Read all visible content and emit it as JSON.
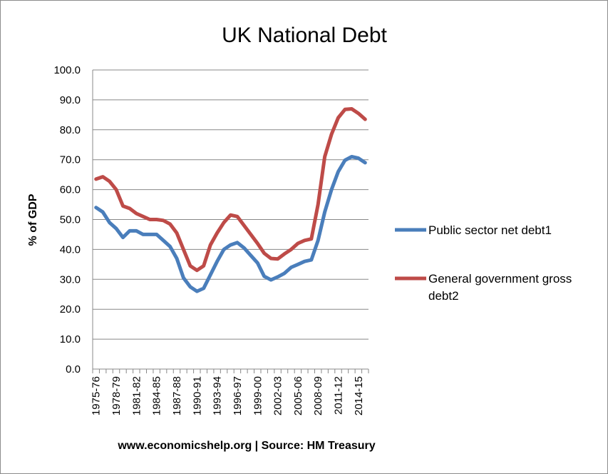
{
  "chart_data": {
    "type": "line",
    "title": "UK National Debt",
    "ylabel": "% of GDP",
    "xlabel": "",
    "ylim": [
      0,
      100
    ],
    "y_ticks": [
      "0.0",
      "10.0",
      "20.0",
      "30.0",
      "40.0",
      "50.0",
      "60.0",
      "70.0",
      "80.0",
      "90.0",
      "100.0"
    ],
    "grid": "horizontal",
    "legend_position": "right",
    "x": [
      "1975-76",
      "1976-77",
      "1977-78",
      "1978-79",
      "1979-80",
      "1980-81",
      "1981-82",
      "1982-83",
      "1983-84",
      "1984-85",
      "1985-86",
      "1986-87",
      "1987-88",
      "1988-89",
      "1989-90",
      "1990-91",
      "1991-92",
      "1992-93",
      "1993-94",
      "1994-95",
      "1995-96",
      "1996-97",
      "1997-98",
      "1998-99",
      "1999-00",
      "2000-01",
      "2001-02",
      "2002-03",
      "2003-04",
      "2004-05",
      "2005-06",
      "2006-07",
      "2007-08",
      "2008-09",
      "2009-10",
      "2010-11",
      "2011-12",
      "2012-13",
      "2013-14",
      "2014-15",
      "2015-16"
    ],
    "x_tick_labels": [
      "1975-76",
      "1978-79",
      "1981-82",
      "1984-85",
      "1987-88",
      "1990-91",
      "1993-94",
      "1996-97",
      "1999-00",
      "2002-03",
      "2005-06",
      "2008-09",
      "2011-12",
      "2014-15"
    ],
    "series": [
      {
        "name": "Public sector net debt1",
        "color": "#4a7ebb",
        "values": [
          54.0,
          52.5,
          49.0,
          47.0,
          44.0,
          46.2,
          46.2,
          45.0,
          45.0,
          45.0,
          43.0,
          41.0,
          37.0,
          30.5,
          27.5,
          26.0,
          27.0,
          31.5,
          36.0,
          40.0,
          41.5,
          42.3,
          40.5,
          38.0,
          35.5,
          31.0,
          29.8,
          30.8,
          32.0,
          34.0,
          35.0,
          36.0,
          36.5,
          43.0,
          52.5,
          60.0,
          66.0,
          69.8,
          71.0,
          70.5,
          69.0
        ]
      },
      {
        "name": "General government gross debt2",
        "color": "#be4b48",
        "values": [
          63.5,
          64.3,
          62.8,
          60.0,
          54.5,
          53.7,
          52.0,
          51.0,
          50.0,
          50.0,
          49.7,
          48.5,
          45.5,
          40.0,
          34.5,
          33.0,
          34.5,
          41.5,
          45.5,
          49.0,
          51.5,
          51.0,
          48.0,
          45.0,
          42.0,
          38.7,
          37.0,
          36.8,
          38.5,
          40.0,
          42.0,
          43.0,
          43.5,
          55.0,
          71.0,
          78.5,
          84.0,
          86.8,
          87.0,
          85.5,
          83.5
        ]
      }
    ],
    "footer": "www.economicshelp.org | Source: HM Treasury"
  }
}
